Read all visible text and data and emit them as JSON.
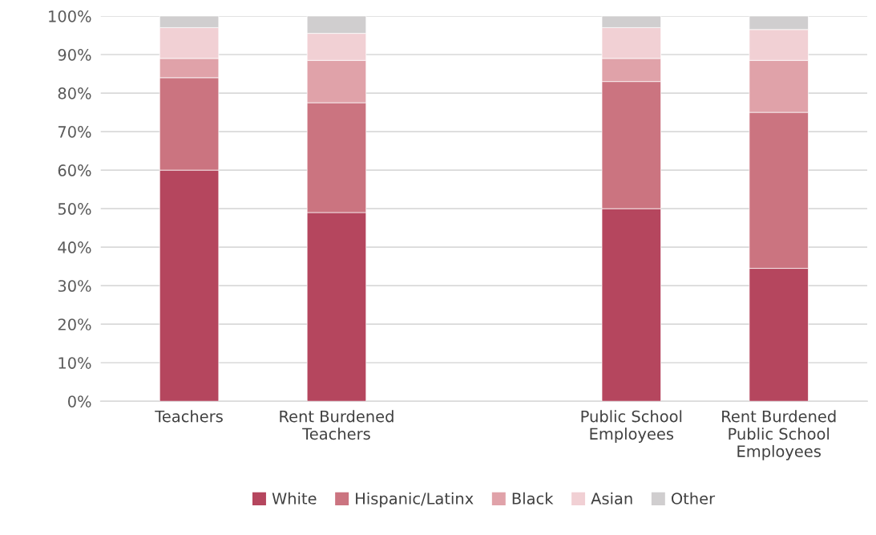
{
  "chart_data": {
    "type": "bar",
    "stacked": true,
    "categories": [
      "Teachers",
      "Rent Burdened\nTeachers",
      null,
      "Public School\nEmployees",
      "Rent Burdened\nPublic School\nEmployees"
    ],
    "series": [
      {
        "name": "White",
        "color": "#b5465e",
        "values": [
          60,
          49,
          null,
          50,
          34.5
        ]
      },
      {
        "name": "Hispanic/Latinx",
        "color": "#cb7480",
        "values": [
          24,
          28.5,
          null,
          33,
          40.5
        ]
      },
      {
        "name": "Black",
        "color": "#e0a2a9",
        "values": [
          5,
          11,
          null,
          6,
          13.5
        ]
      },
      {
        "name": "Asian",
        "color": "#f1d0d4",
        "values": [
          8,
          7,
          null,
          8,
          8
        ]
      },
      {
        "name": "Other",
        "color": "#d0cecf",
        "values": [
          3,
          4.5,
          null,
          3,
          3.5
        ]
      }
    ],
    "ylim": [
      0,
      100
    ],
    "yticks": [
      {
        "value": 0,
        "label": "0%"
      },
      {
        "value": 10,
        "label": "10%"
      },
      {
        "value": 20,
        "label": "20%"
      },
      {
        "value": 30,
        "label": "30%"
      },
      {
        "value": 40,
        "label": "40%"
      },
      {
        "value": 50,
        "label": "50%"
      },
      {
        "value": 60,
        "label": "60%"
      },
      {
        "value": 70,
        "label": "70%"
      },
      {
        "value": 80,
        "label": "80%"
      },
      {
        "value": 90,
        "label": "90%"
      },
      {
        "value": 100,
        "label": "100%"
      }
    ],
    "grid": "y",
    "legend": "bottom"
  }
}
